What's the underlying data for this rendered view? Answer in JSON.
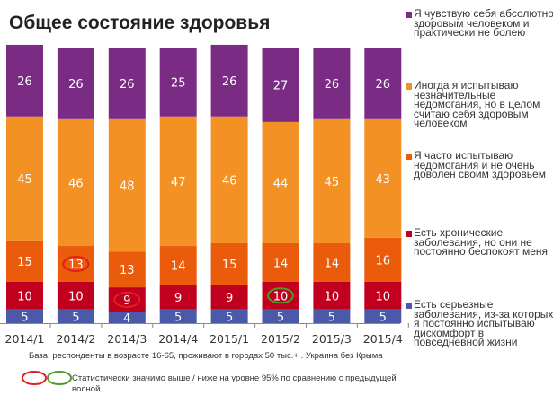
{
  "chart_data": {
    "type": "bar",
    "stacked": true,
    "title": "Общее состояние здоровья",
    "categories": [
      "2014/1",
      "2014/2",
      "2014/3",
      "2014/4",
      "2015/1",
      "2015/2",
      "2015/3",
      "2015/4"
    ],
    "series": [
      {
        "name": "Есть серьезные заболевания, из-за которых я постоянно испытываю дискомфорт в повседневной жизни",
        "color": "#4a5aa8",
        "values": [
          5,
          5,
          4,
          5,
          5,
          5,
          5,
          5
        ]
      },
      {
        "name": "Есть хронические заболевания, но они не постоянно беспокоят меня",
        "color": "#c0001e",
        "values": [
          10,
          10,
          9,
          9,
          9,
          10,
          10,
          10
        ]
      },
      {
        "name": "Я часто испытываю недомогания и не очень доволен своим здоровьем",
        "color": "#ea5b0c",
        "values": [
          15,
          13,
          13,
          14,
          15,
          14,
          14,
          16
        ]
      },
      {
        "name": "Иногда я испытываю незначительные недомогания, но в целом считаю себя здоровым человеком",
        "color": "#f39124",
        "values": [
          45,
          46,
          48,
          47,
          46,
          44,
          45,
          43
        ]
      },
      {
        "name": "Я чувствую себя абсолютно здоровым человеком и практически не болею",
        "color": "#7a2b83",
        "values": [
          26,
          26,
          26,
          25,
          26,
          27,
          26,
          26
        ]
      }
    ],
    "significance_markers": [
      {
        "category": "2014/2",
        "series": 2,
        "direction": "higher_lower",
        "color": "#e02020"
      },
      {
        "category": "2014/3",
        "series": 1,
        "direction": "higher_lower",
        "color": "#e02020"
      },
      {
        "category": "2015/2",
        "series": 1,
        "direction": "higher_lower",
        "color": "#4f9a2a"
      }
    ],
    "legend_placement": "right",
    "grid": false
  },
  "notes": {
    "base": "База: респонденты в возрасте 16-65, проживают в городах 50 тыс.+ . Украина без Крыма",
    "significance": "Статистически значимо выше / ниже на уровне 95% по сравнению с предыдущей волной",
    "red_color": "#e02020",
    "green_color": "#4f9a2a"
  }
}
